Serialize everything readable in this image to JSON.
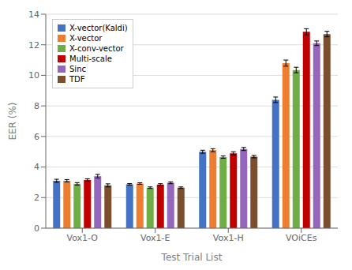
{
  "chart_data": {
    "type": "bar",
    "xlabel": "Test Trial List",
    "ylabel": "EER (%)",
    "categories": [
      "Vox1-O",
      "Vox1-E",
      "Vox1-H",
      "VOiCEs"
    ],
    "series": [
      {
        "name": "X-vector(Kaldi)",
        "color": "#4472c4",
        "values": [
          3.1,
          2.87,
          5.0,
          8.4
        ],
        "errors": [
          0.1,
          0.05,
          0.1,
          0.18
        ]
      },
      {
        "name": "X-vector",
        "color": "#ed7d31",
        "values": [
          3.1,
          2.92,
          5.1,
          10.8
        ],
        "errors": [
          0.08,
          0.05,
          0.1,
          0.2
        ]
      },
      {
        "name": "X-conv-vector",
        "color": "#70ad47",
        "values": [
          2.9,
          2.65,
          4.65,
          10.35
        ],
        "errors": [
          0.08,
          0.05,
          0.08,
          0.18
        ]
      },
      {
        "name": "Multi-scale",
        "color": "#c00000",
        "values": [
          3.15,
          2.85,
          4.9,
          12.85
        ],
        "errors": [
          0.08,
          0.06,
          0.1,
          0.2
        ]
      },
      {
        "name": "Sinc",
        "color": "#9467bd",
        "values": [
          3.4,
          2.97,
          5.18,
          12.1
        ],
        "errors": [
          0.12,
          0.06,
          0.1,
          0.15
        ]
      },
      {
        "name": "TDF",
        "color": "#7b4f2e",
        "values": [
          2.8,
          2.65,
          4.68,
          12.7
        ],
        "errors": [
          0.1,
          0.05,
          0.08,
          0.18
        ]
      }
    ],
    "ylim": [
      0,
      14
    ],
    "yticks": [
      0,
      2,
      4,
      6,
      8,
      10,
      12,
      14
    ],
    "grid": true,
    "legend": "upper left"
  }
}
